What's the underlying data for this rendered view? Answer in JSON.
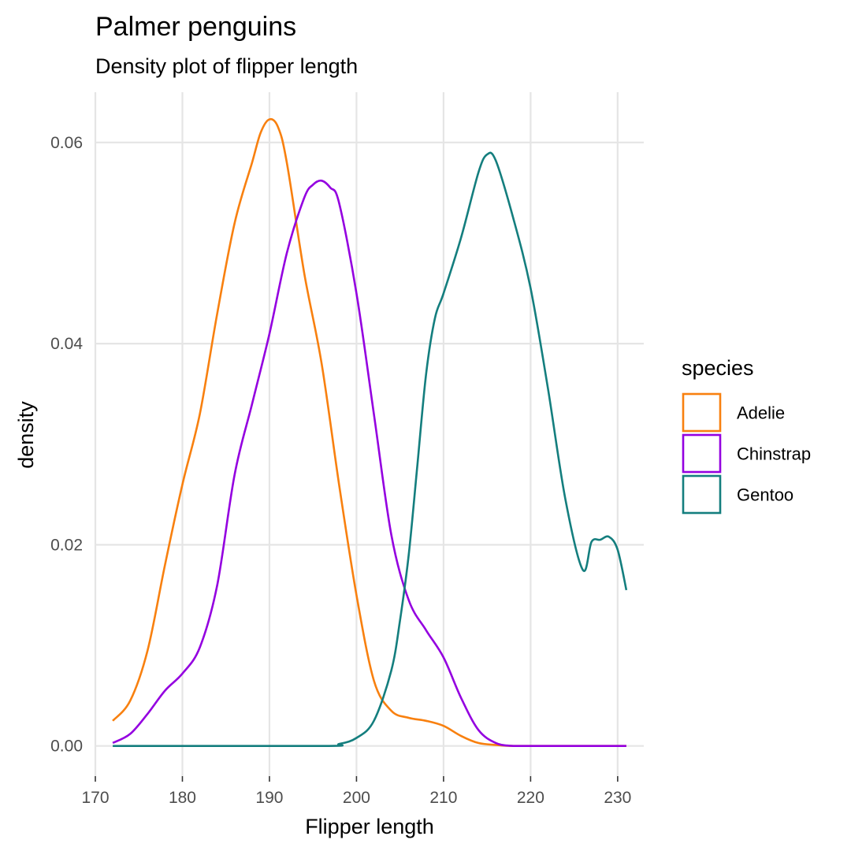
{
  "chart_data": {
    "type": "line",
    "title": "Palmer penguins",
    "subtitle": "Density plot of flipper length",
    "xlabel": "Flipper length",
    "ylabel": "density",
    "xlim": [
      170,
      233
    ],
    "ylim": [
      -0.003,
      0.065
    ],
    "x_ticks": [
      170,
      180,
      190,
      200,
      210,
      220,
      230
    ],
    "y_ticks": [
      0.0,
      0.02,
      0.04,
      0.06
    ],
    "y_tick_labels": [
      "0.00",
      "0.02",
      "0.04",
      "0.06"
    ],
    "grid": true,
    "legend": {
      "title": "species",
      "placement": "right"
    },
    "series": [
      {
        "name": "Adelie",
        "color": "#F8800F",
        "x": [
          172,
          174,
          176,
          178,
          180,
          182,
          184,
          186,
          188,
          189,
          190,
          191,
          192,
          194,
          196,
          198,
          200,
          202,
          204,
          206,
          208,
          210,
          212,
          214,
          216,
          218,
          220,
          231
        ],
        "y": [
          0.0025,
          0.0045,
          0.0095,
          0.018,
          0.026,
          0.033,
          0.043,
          0.052,
          0.058,
          0.061,
          0.0623,
          0.0615,
          0.058,
          0.047,
          0.038,
          0.026,
          0.015,
          0.0065,
          0.0035,
          0.0028,
          0.0025,
          0.002,
          0.001,
          0.0003,
          0.0001,
          0,
          0,
          0
        ]
      },
      {
        "name": "Chinstrap",
        "color": "#9400E0",
        "x": [
          172,
          174,
          176,
          178,
          180,
          182,
          184,
          186,
          188,
          190,
          192,
          194,
          195,
          196,
          197,
          198,
          200,
          202,
          204,
          206,
          208,
          210,
          212,
          214,
          216,
          218,
          220,
          222,
          231
        ],
        "y": [
          0.0003,
          0.0012,
          0.0032,
          0.0055,
          0.0072,
          0.0098,
          0.016,
          0.027,
          0.034,
          0.041,
          0.049,
          0.0545,
          0.0558,
          0.0562,
          0.0555,
          0.054,
          0.045,
          0.033,
          0.021,
          0.0145,
          0.0115,
          0.0088,
          0.0048,
          0.0016,
          0.0003,
          0,
          0,
          0,
          0
        ]
      },
      {
        "name": "Gentoo",
        "color": "#147E7E",
        "x": [
          172,
          196,
          198,
          200,
          202,
          204,
          205,
          206,
          207,
          208,
          209,
          210,
          212,
          214,
          215,
          216,
          218,
          220,
          222,
          224,
          226,
          227,
          228,
          229,
          230,
          231
        ],
        "y": [
          0,
          0,
          0.0002,
          0.0008,
          0.0025,
          0.0075,
          0.0125,
          0.019,
          0.028,
          0.037,
          0.0425,
          0.045,
          0.0505,
          0.057,
          0.0588,
          0.0582,
          0.0525,
          0.0455,
          0.0355,
          0.0245,
          0.0175,
          0.0203,
          0.0205,
          0.0208,
          0.0195,
          0.0155
        ]
      }
    ]
  }
}
